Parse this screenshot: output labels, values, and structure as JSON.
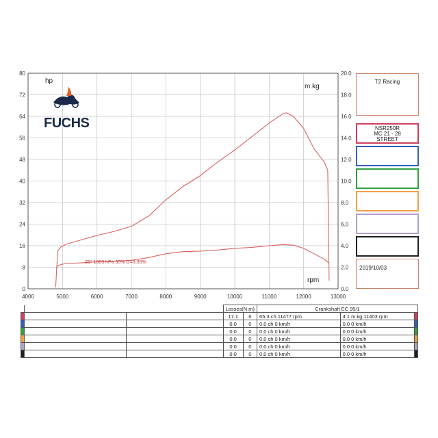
{
  "chart_data": {
    "type": "line",
    "x": {
      "label": "rpm",
      "ticks": [
        4000,
        5000,
        6000,
        7000,
        8000,
        9000,
        10000,
        11000,
        12000,
        13000
      ],
      "range": [
        4000,
        13000
      ]
    },
    "y_left": {
      "unit": "hp",
      "ticks": [
        0,
        8,
        16,
        24,
        32,
        40,
        48,
        56,
        64,
        72,
        80
      ],
      "range": [
        0,
        80
      ]
    },
    "y_right": {
      "unit": "m.kg",
      "ticks": [
        "0.0",
        "2.0",
        "4.0",
        "6.0",
        "8.0",
        "10.0",
        "12.0",
        "14.0",
        "16.0",
        "18.0",
        "20.0"
      ],
      "range": [
        0,
        20
      ]
    },
    "grid": true,
    "series": [
      {
        "axis": "left",
        "color": "#d96060",
        "x": [
          4800,
          4860,
          4950,
          5100,
          5500,
          6000,
          6500,
          7000,
          7500,
          8000,
          8500,
          9000,
          9500,
          10000,
          10500,
          11000,
          11400,
          11500,
          11700,
          12000,
          12300,
          12600,
          12700,
          12740
        ],
        "y": [
          0.5,
          14,
          15.5,
          16.5,
          18,
          19.8,
          21.3,
          23.2,
          27,
          33,
          38,
          42,
          47,
          51.5,
          56.5,
          61.5,
          65,
          65.3,
          64,
          59.5,
          52,
          47,
          44,
          3
        ]
      },
      {
        "axis": "right",
        "color": "#d96060",
        "x": [
          4810,
          4860,
          4950,
          5100,
          5500,
          6000,
          6500,
          7000,
          7500,
          8000,
          8500,
          9000,
          9500,
          10000,
          10500,
          11000,
          11400,
          11700,
          12000,
          12300,
          12600,
          12730
        ],
        "y": [
          1.9,
          2.1,
          2.25,
          2.35,
          2.4,
          2.5,
          2.55,
          2.65,
          2.9,
          3.25,
          3.45,
          3.5,
          3.6,
          3.75,
          3.85,
          4.0,
          4.1,
          4.05,
          3.75,
          3.25,
          2.75,
          2.4
        ]
      }
    ],
    "annotation": "25°  1003 hPa  35%   G=3.35%"
  },
  "logo": {
    "name": "FUCHS"
  },
  "panel": {
    "team": "T2 Racing",
    "bike_line1": "NSR250R",
    "bike_line2": "MC 21 - 28",
    "bike_line3": "STREET",
    "date": "2019/10/03",
    "swatch_colors": [
      "#d04060",
      "#3060c0",
      "#30a040",
      "#f0a040",
      "#b0a0c8",
      "#202020"
    ]
  },
  "table": {
    "header_losses": "Losses(N.m)",
    "header_crank": "Crankshaft EC 95/1",
    "rows": [
      {
        "color": "#d04060",
        "loss1": "17.1",
        "loss2": "6",
        "power": "65.3  ch 11477 rpm",
        "torque": "4.1  m.kg 11403 rpm"
      },
      {
        "color": "#3060c0",
        "loss1": "0.0",
        "loss2": "0",
        "power": "0.0  ch   0 km/h",
        "torque": "0.0   0 km/h"
      },
      {
        "color": "#30a040",
        "loss1": "0.0",
        "loss2": "0",
        "power": "0.0  ch   0 km/h",
        "torque": "0.0   0 km/h"
      },
      {
        "color": "#f0a040",
        "loss1": "0.0",
        "loss2": "0",
        "power": "0.0  ch   0 km/h",
        "torque": "0.0   0 km/h"
      },
      {
        "color": "#b0a0c8",
        "loss1": "0.0",
        "loss2": "0",
        "power": "0.0  ch   0 km/h",
        "torque": "0.0   0 km/h"
      },
      {
        "color": "#202020",
        "loss1": "0.0",
        "loss2": "0",
        "power": "0.0  ch   0 km/h",
        "torque": "0.0   0 km/h"
      }
    ]
  }
}
